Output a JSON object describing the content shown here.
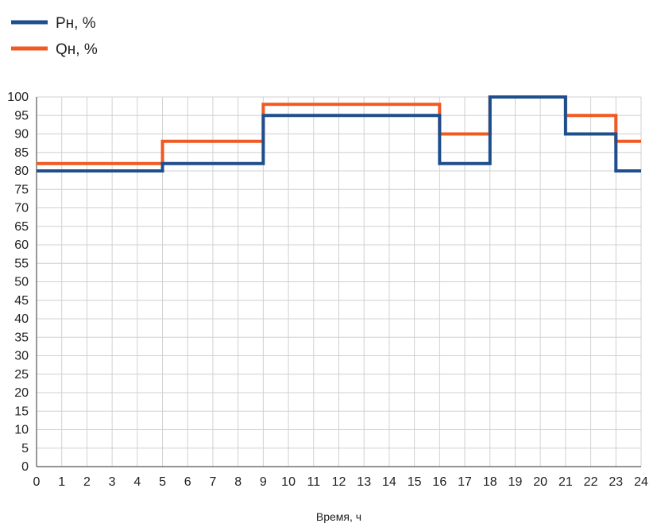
{
  "chart_data": {
    "type": "line",
    "step": true,
    "xlabel": "Время, ч",
    "ylabel": "",
    "xlim": [
      0,
      24
    ],
    "ylim": [
      0,
      100
    ],
    "x_ticks": [
      0,
      1,
      2,
      3,
      4,
      5,
      6,
      7,
      8,
      9,
      10,
      11,
      12,
      13,
      14,
      15,
      16,
      17,
      18,
      19,
      20,
      21,
      22,
      23,
      24
    ],
    "y_ticks": [
      0,
      5,
      10,
      15,
      20,
      25,
      30,
      35,
      40,
      45,
      50,
      55,
      60,
      65,
      70,
      75,
      80,
      85,
      90,
      95,
      100
    ],
    "grid": true,
    "legend_position": "top-left",
    "series": [
      {
        "name": "Pн, %",
        "color": "#1f4e8c",
        "x": [
          0,
          5,
          9,
          16,
          18,
          21,
          23,
          24
        ],
        "y": [
          80,
          82,
          95,
          82,
          100,
          90,
          80,
          80
        ]
      },
      {
        "name": "Qн, %",
        "color": "#f05a22",
        "x": [
          0,
          5,
          9,
          16,
          18,
          21,
          23,
          24
        ],
        "y": [
          82,
          88,
          98,
          90,
          100,
          95,
          88,
          88
        ]
      }
    ]
  }
}
